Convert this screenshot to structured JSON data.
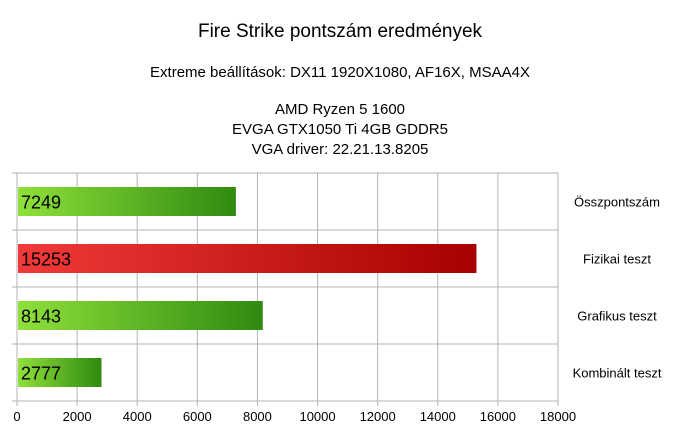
{
  "chart_data": {
    "type": "bar",
    "orientation": "horizontal",
    "title": "Fire Strike pontszám eredmények",
    "subtitle": "Extreme beállítások: DX11 1920X1080, AF16X, MSAA4X",
    "system_info": [
      "AMD Ryzen 5 1600",
      "EVGA GTX1050 Ti 4GB GDDR5",
      "VGA driver: 22.21.13.8205"
    ],
    "categories": [
      "Összpontszám",
      "Fizikai teszt",
      "Grafikus teszt",
      "Kombinált teszt"
    ],
    "values": [
      7249,
      15253,
      8143,
      2777
    ],
    "xlim": [
      0,
      18000
    ],
    "xticks": [
      0,
      2000,
      4000,
      6000,
      8000,
      10000,
      12000,
      14000,
      16000,
      18000
    ],
    "grid": "vertical",
    "category_label_position": "right",
    "value_labels": "inside-left",
    "colors": {
      "Összpontszám": "#66bb22",
      "Fizikai teszt": "#cc1111",
      "Grafikus teszt": "#66bb22",
      "Kombinált teszt": "#66bb22"
    }
  }
}
